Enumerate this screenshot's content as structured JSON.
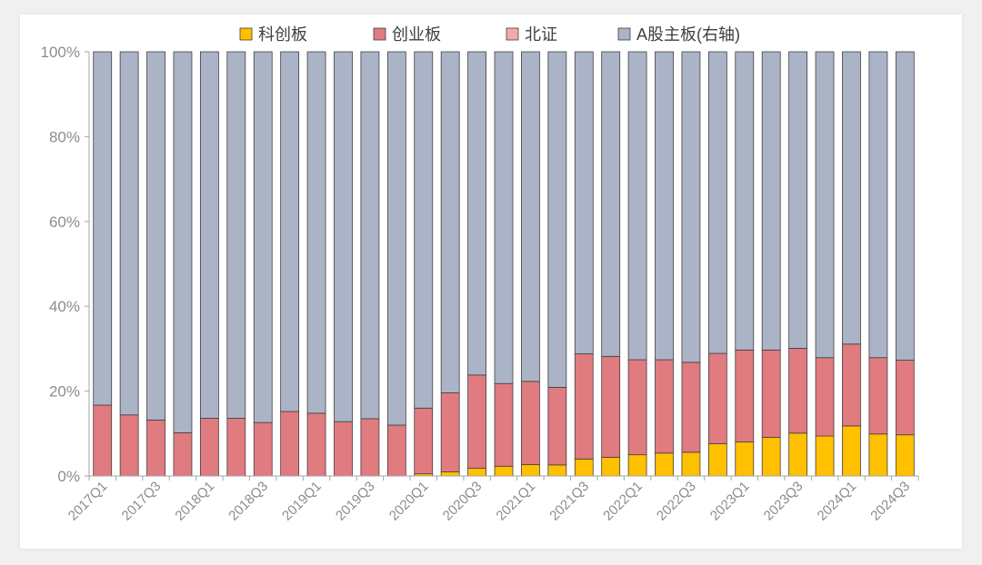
{
  "chart_data": {
    "type": "bar",
    "stacked": true,
    "categories": [
      "2017Q1",
      "2017Q2",
      "2017Q3",
      "2017Q4",
      "2018Q1",
      "2018Q2",
      "2018Q3",
      "2018Q4",
      "2019Q1",
      "2019Q2",
      "2019Q3",
      "2019Q4",
      "2020Q1",
      "2020Q2",
      "2020Q3",
      "2020Q4",
      "2021Q1",
      "2021Q2",
      "2021Q3",
      "2021Q4",
      "2022Q1",
      "2022Q2",
      "2022Q3",
      "2022Q4",
      "2023Q1",
      "2023Q2",
      "2023Q3",
      "2023Q4",
      "2024Q1",
      "2024Q2",
      "2024Q3"
    ],
    "tick_labels": [
      "2017Q1",
      "",
      "2017Q3",
      "",
      "2018Q1",
      "",
      "2018Q3",
      "",
      "2019Q1",
      "",
      "2019Q3",
      "",
      "2020Q1",
      "",
      "2020Q3",
      "",
      "2021Q1",
      "",
      "2021Q3",
      "",
      "2022Q1",
      "",
      "2022Q3",
      "",
      "2023Q1",
      "",
      "2023Q3",
      "",
      "2024Q1",
      "",
      "2024Q3"
    ],
    "series": [
      {
        "name": "科创板",
        "color": "#ffc000",
        "values": [
          0,
          0,
          0,
          0,
          0,
          0,
          0,
          0,
          0,
          0,
          0,
          0,
          0.5,
          1.0,
          1.8,
          2.3,
          2.7,
          2.6,
          4.0,
          4.4,
          5.0,
          5.4,
          5.6,
          7.6,
          8.0,
          9.1,
          10.1,
          9.4,
          11.8,
          9.9,
          9.7
        ]
      },
      {
        "name": "创业板",
        "color": "#e07b80",
        "values": [
          16.7,
          14.4,
          13.2,
          10.2,
          13.6,
          13.6,
          12.6,
          15.2,
          14.8,
          12.8,
          13.5,
          12.0,
          15.5,
          18.6,
          22.0,
          19.5,
          19.6,
          18.3,
          24.8,
          23.8,
          22.4,
          22.0,
          21.2,
          21.3,
          21.7,
          20.6,
          20.0,
          18.5,
          19.3,
          18.0,
          17.6
        ]
      },
      {
        "name": "北证",
        "color": "#f4aaaa",
        "values": [
          0,
          0,
          0,
          0,
          0,
          0,
          0,
          0,
          0,
          0,
          0,
          0,
          0,
          0,
          0,
          0,
          0,
          0,
          0,
          0,
          0,
          0,
          0,
          0,
          0,
          0,
          0,
          0,
          0,
          0,
          0
        ]
      },
      {
        "name": "A股主板(右轴)",
        "color": "#aab4c6",
        "values": [
          83.3,
          85.6,
          86.8,
          89.8,
          86.4,
          86.4,
          87.4,
          84.8,
          85.2,
          87.2,
          86.5,
          88.0,
          84.0,
          80.4,
          76.2,
          78.2,
          77.7,
          79.1,
          71.2,
          71.8,
          72.6,
          72.6,
          73.2,
          71.1,
          70.3,
          70.3,
          69.9,
          72.1,
          68.9,
          72.1,
          72.7
        ]
      }
    ],
    "ylim": [
      0,
      100
    ],
    "y_ticks": [
      "0%",
      "20%",
      "40%",
      "60%",
      "80%",
      "100%"
    ],
    "legend_position": "top-center",
    "grid": false
  }
}
